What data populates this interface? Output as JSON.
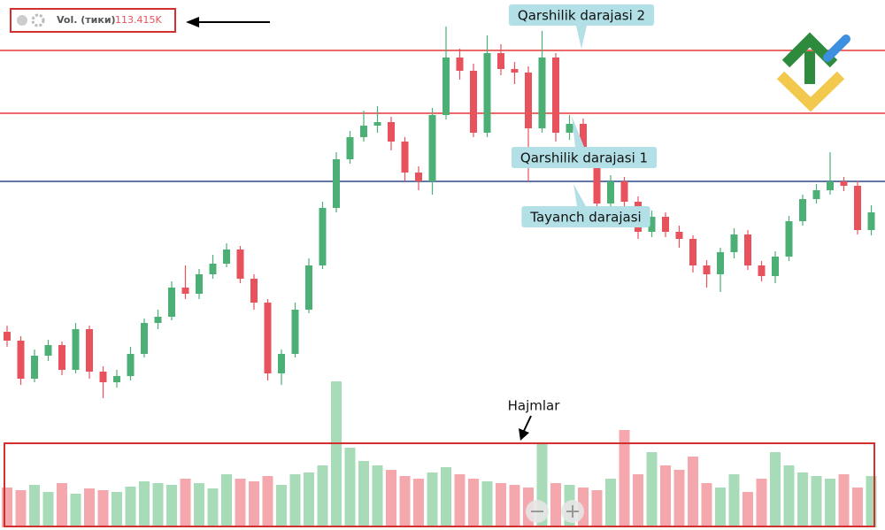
{
  "chart_data": {
    "type": "candlestick",
    "indicator": {
      "name": "Vol. (тики)",
      "value": "113.415K"
    },
    "volume_label": "Hajmlar",
    "ylim": [
      0,
      600
    ],
    "open": [
      225,
      215,
      172,
      198,
      210,
      182,
      228,
      180,
      168,
      175,
      200,
      235,
      242,
      275,
      268,
      290,
      302,
      318,
      285,
      258,
      178,
      200,
      250,
      300,
      365,
      420,
      445,
      458,
      462,
      440,
      405,
      395,
      470,
      535,
      520,
      450,
      540,
      522,
      518,
      455,
      535,
      450,
      460,
      420,
      370,
      395,
      372,
      338,
      355,
      338,
      330,
      300,
      290,
      315,
      335,
      300,
      288,
      310,
      350,
      375,
      385,
      395,
      390,
      340
    ],
    "high": [
      232,
      220,
      205,
      216,
      214,
      235,
      232,
      186,
      182,
      208,
      240,
      250,
      282,
      300,
      296,
      312,
      325,
      322,
      290,
      262,
      205,
      258,
      308,
      372,
      428,
      452,
      475,
      480,
      468,
      445,
      412,
      478,
      570,
      545,
      528,
      560,
      550,
      530,
      525,
      565,
      540,
      470,
      466,
      425,
      402,
      400,
      378,
      362,
      360,
      345,
      334,
      306,
      320,
      342,
      340,
      305,
      316,
      356,
      380,
      392,
      428,
      400,
      396,
      368
    ],
    "low": [
      208,
      165,
      168,
      192,
      176,
      178,
      172,
      150,
      162,
      170,
      196,
      228,
      238,
      262,
      262,
      285,
      298,
      280,
      250,
      170,
      165,
      196,
      246,
      296,
      360,
      415,
      440,
      450,
      430,
      395,
      385,
      380,
      465,
      510,
      445,
      445,
      515,
      505,
      395,
      450,
      440,
      442,
      412,
      362,
      365,
      365,
      330,
      332,
      332,
      320,
      292,
      275,
      270,
      308,
      295,
      282,
      280,
      305,
      345,
      370,
      380,
      384,
      335,
      334
    ],
    "close": [
      215,
      172,
      198,
      210,
      182,
      228,
      180,
      168,
      175,
      200,
      235,
      242,
      275,
      268,
      290,
      302,
      318,
      285,
      258,
      178,
      200,
      250,
      300,
      365,
      420,
      445,
      458,
      462,
      440,
      405,
      395,
      470,
      535,
      520,
      450,
      540,
      522,
      518,
      455,
      535,
      450,
      460,
      420,
      370,
      395,
      372,
      338,
      355,
      338,
      330,
      300,
      290,
      315,
      335,
      300,
      288,
      310,
      350,
      375,
      385,
      395,
      390,
      340,
      360
    ],
    "volume": [
      45,
      42,
      48,
      40,
      50,
      38,
      44,
      42,
      40,
      46,
      52,
      50,
      48,
      55,
      50,
      44,
      60,
      55,
      52,
      58,
      48,
      60,
      62,
      70,
      165,
      90,
      75,
      70,
      65,
      58,
      55,
      62,
      68,
      60,
      55,
      52,
      50,
      48,
      45,
      95,
      50,
      48,
      45,
      42,
      55,
      110,
      60,
      85,
      70,
      65,
      80,
      50,
      45,
      60,
      40,
      55,
      85,
      70,
      62,
      58,
      55,
      60,
      45,
      58
    ],
    "up_color": "#4caf75",
    "down_color": "#e8525c",
    "up_volume_color": "#a8dcb8",
    "down_volume_color": "#f4a7ad",
    "levels": [
      {
        "value": 543,
        "label": "Qarshilik darajasi 2",
        "color": "#e53935"
      },
      {
        "value": 472,
        "label": "Qarshilik darajasi 1",
        "color": "#e53935"
      },
      {
        "value": 395,
        "label": "Tayanch darajasi",
        "color": "#2c4a8c"
      }
    ]
  }
}
